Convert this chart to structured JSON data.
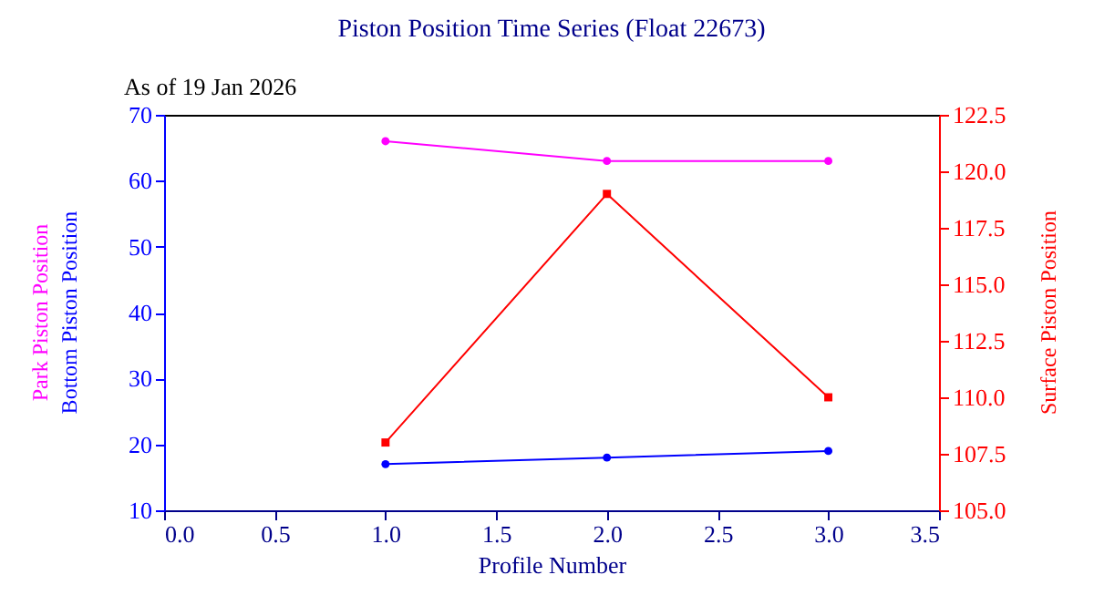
{
  "chart_data": {
    "type": "line",
    "title": "Piston Position Time Series (Float 22673)",
    "annotations": [
      "As of 19 Jan 2026"
    ],
    "xlabel": "Profile Number",
    "x": [
      1,
      2,
      3
    ],
    "xlim": [
      0,
      3.5
    ],
    "xticks": [
      {
        "value": 0,
        "label": "0.0"
      },
      {
        "value": 0.5,
        "label": "0.5"
      },
      {
        "value": 1,
        "label": "1.0"
      },
      {
        "value": 1.5,
        "label": "1.5"
      },
      {
        "value": 2,
        "label": "2.0"
      },
      {
        "value": 2.5,
        "label": "2.5"
      },
      {
        "value": 3,
        "label": "3.0"
      },
      {
        "value": 3.5,
        "label": "3.5"
      }
    ],
    "ylim": [
      10,
      70
    ],
    "yticks": [
      10,
      20,
      30,
      40,
      50,
      60,
      70
    ],
    "y2lim": [
      105,
      122.5
    ],
    "y2ticks": [
      {
        "value": 105,
        "label": "105.0"
      },
      {
        "value": 107.5,
        "label": "107.5"
      },
      {
        "value": 110,
        "label": "110.0"
      },
      {
        "value": 112.5,
        "label": "112.5"
      },
      {
        "value": 115,
        "label": "115.0"
      },
      {
        "value": 117.5,
        "label": "117.5"
      },
      {
        "value": 120,
        "label": "120.0"
      },
      {
        "value": 122.5,
        "label": "122.5"
      }
    ],
    "grid": false,
    "legend": false,
    "line_style": "solid",
    "series": [
      {
        "name": "Park Piston Position",
        "color": "#ff00ff",
        "marker": "circle",
        "values": [
          66,
          63,
          63
        ]
      },
      {
        "name": "Bottom Piston Position",
        "color": "#0000ff",
        "marker": "circle",
        "values": [
          17,
          18,
          19
        ]
      },
      {
        "name": "Surface Piston Position",
        "color": "#ff0000",
        "marker": "square",
        "axis": "y2",
        "values": [
          108,
          119,
          110
        ]
      }
    ]
  }
}
